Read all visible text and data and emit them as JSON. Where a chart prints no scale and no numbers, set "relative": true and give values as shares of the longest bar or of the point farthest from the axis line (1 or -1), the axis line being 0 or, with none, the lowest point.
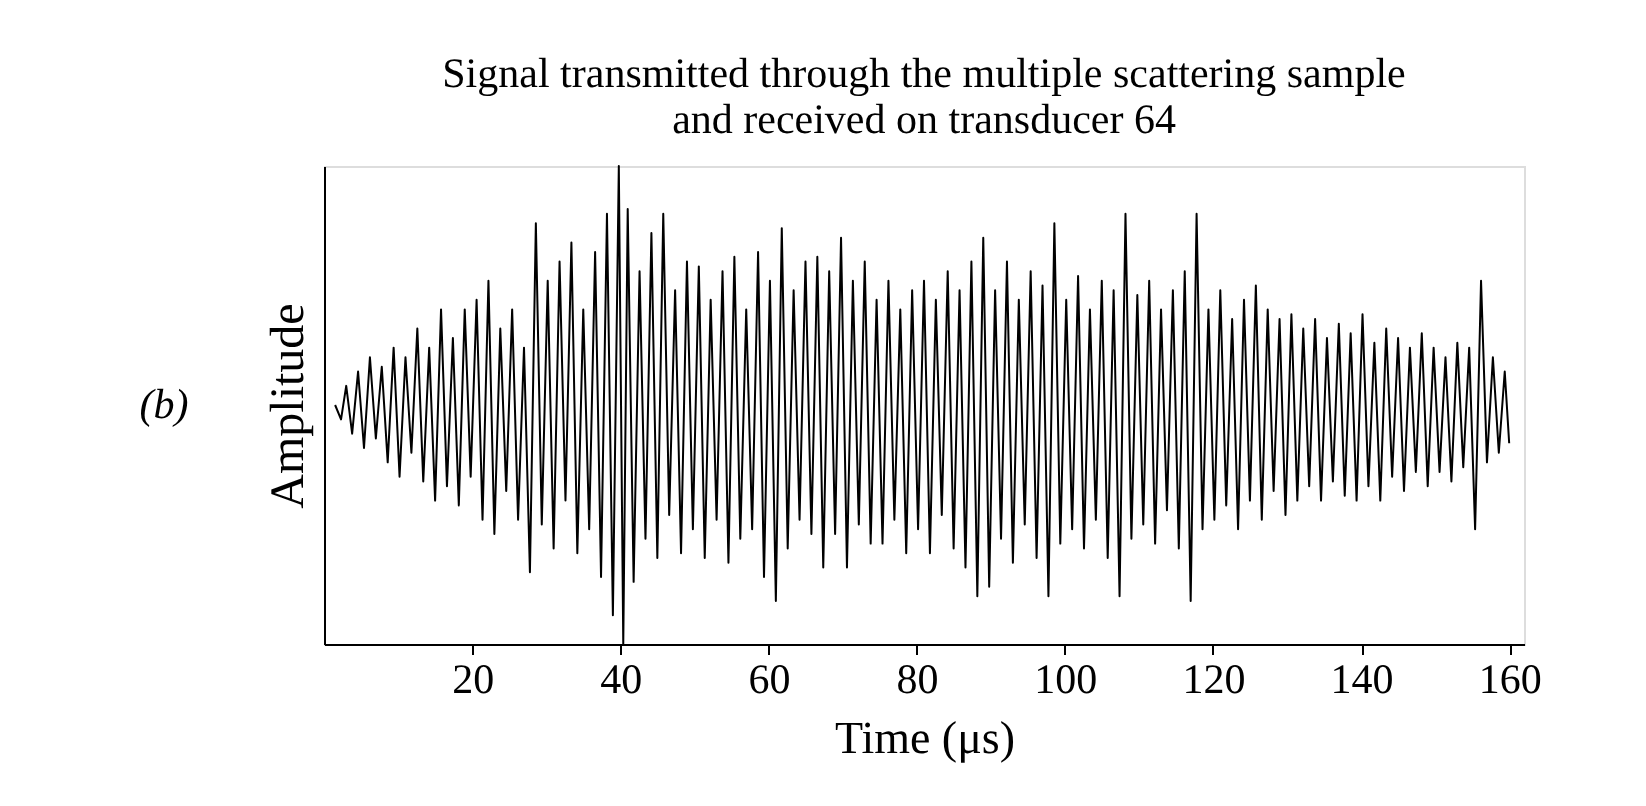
{
  "chart_data": {
    "type": "line",
    "title": "Signal transmitted through the multiple scattering sample\nand received on transducer 64",
    "xlabel": "Time (μs)",
    "ylabel": "Amplitude",
    "annotations": [
      "(b)"
    ],
    "relative": true,
    "color": "#000000",
    "xlim": [
      0,
      162
    ],
    "xticks": [
      20,
      40,
      60,
      80,
      100,
      120,
      140,
      160
    ],
    "x": [
      1.5,
      2.3,
      3.0,
      3.8,
      4.6,
      5.4,
      6.2,
      7.0,
      7.8,
      8.6,
      9.4,
      10.2,
      11.0,
      11.8,
      12.6,
      13.4,
      14.2,
      15.0,
      15.8,
      16.6,
      17.4,
      18.2,
      19.0,
      19.8,
      20.6,
      21.4,
      22.2,
      23.0,
      23.8,
      24.6,
      25.4,
      26.2,
      27.0,
      27.8,
      28.6,
      29.4,
      30.2,
      31.0,
      31.8,
      32.6,
      33.4,
      34.2,
      35.0,
      35.8,
      36.6,
      37.4,
      38.2,
      39.0,
      39.8,
      40.4,
      41.0,
      41.8,
      42.6,
      43.4,
      44.2,
      45.0,
      45.8,
      46.6,
      47.4,
      48.2,
      49.0,
      49.8,
      50.6,
      51.4,
      52.2,
      53.0,
      53.8,
      54.6,
      55.4,
      56.2,
      57.0,
      57.8,
      58.6,
      59.4,
      60.2,
      61.0,
      61.8,
      62.6,
      63.4,
      64.2,
      65.0,
      65.8,
      66.6,
      67.4,
      68.2,
      69.0,
      69.8,
      70.6,
      71.4,
      72.2,
      73.0,
      73.8,
      74.6,
      75.4,
      76.2,
      77.0,
      77.8,
      78.6,
      79.4,
      80.2,
      81.0,
      81.8,
      82.6,
      83.4,
      84.2,
      85.0,
      85.8,
      86.6,
      87.4,
      88.2,
      89.0,
      89.8,
      90.6,
      91.4,
      92.2,
      93.0,
      93.8,
      94.6,
      95.4,
      96.2,
      97.0,
      97.8,
      98.6,
      99.4,
      100.2,
      101.0,
      101.8,
      102.6,
      103.4,
      104.2,
      105.0,
      105.8,
      106.6,
      107.4,
      108.2,
      109.0,
      109.8,
      110.6,
      111.4,
      112.2,
      113.0,
      113.8,
      114.6,
      115.4,
      116.2,
      117.0,
      117.8,
      118.6,
      119.4,
      120.2,
      121.0,
      121.8,
      122.6,
      123.4,
      124.2,
      125.0,
      125.8,
      126.6,
      127.4,
      128.2,
      129.0,
      129.8,
      130.6,
      131.4,
      132.2,
      133.0,
      133.8,
      134.6,
      135.4,
      136.2,
      137.0,
      137.8,
      138.6,
      139.4,
      140.2,
      141.0,
      141.8,
      142.6,
      143.4,
      144.2,
      145.0,
      145.8,
      146.6,
      147.4,
      148.2,
      149.0,
      149.8,
      150.6,
      151.4,
      152.2,
      153.0,
      153.8,
      154.6,
      155.4,
      156.2,
      157.0,
      157.8,
      158.6,
      159.4,
      160.0
    ],
    "values": [
      0.5,
      0.47,
      0.54,
      0.44,
      0.57,
      0.41,
      0.6,
      0.43,
      0.58,
      0.38,
      0.62,
      0.35,
      0.6,
      0.4,
      0.66,
      0.34,
      0.62,
      0.3,
      0.7,
      0.33,
      0.64,
      0.29,
      0.7,
      0.35,
      0.72,
      0.26,
      0.76,
      0.23,
      0.66,
      0.32,
      0.7,
      0.26,
      0.62,
      0.15,
      0.88,
      0.25,
      0.76,
      0.2,
      0.8,
      0.3,
      0.84,
      0.19,
      0.7,
      0.24,
      0.82,
      0.14,
      0.9,
      0.06,
      1.0,
      0.0,
      0.91,
      0.13,
      0.78,
      0.22,
      0.86,
      0.18,
      0.9,
      0.27,
      0.74,
      0.19,
      0.8,
      0.24,
      0.79,
      0.18,
      0.72,
      0.26,
      0.78,
      0.17,
      0.81,
      0.22,
      0.7,
      0.24,
      0.82,
      0.14,
      0.76,
      0.09,
      0.87,
      0.2,
      0.74,
      0.26,
      0.8,
      0.23,
      0.81,
      0.16,
      0.78,
      0.23,
      0.85,
      0.16,
      0.76,
      0.25,
      0.8,
      0.21,
      0.72,
      0.21,
      0.76,
      0.26,
      0.7,
      0.19,
      0.74,
      0.24,
      0.76,
      0.19,
      0.72,
      0.27,
      0.78,
      0.2,
      0.74,
      0.16,
      0.8,
      0.1,
      0.85,
      0.12,
      0.74,
      0.22,
      0.8,
      0.17,
      0.72,
      0.25,
      0.78,
      0.18,
      0.75,
      0.1,
      0.88,
      0.21,
      0.72,
      0.24,
      0.77,
      0.2,
      0.7,
      0.26,
      0.76,
      0.18,
      0.74,
      0.1,
      0.9,
      0.22,
      0.73,
      0.25,
      0.76,
      0.21,
      0.7,
      0.28,
      0.74,
      0.2,
      0.78,
      0.09,
      0.9,
      0.24,
      0.7,
      0.26,
      0.74,
      0.29,
      0.68,
      0.24,
      0.72,
      0.3,
      0.75,
      0.26,
      0.7,
      0.32,
      0.68,
      0.27,
      0.69,
      0.3,
      0.66,
      0.33,
      0.68,
      0.3,
      0.64,
      0.34,
      0.67,
      0.31,
      0.65,
      0.3,
      0.69,
      0.33,
      0.63,
      0.3,
      0.66,
      0.35,
      0.64,
      0.32,
      0.62,
      0.36,
      0.65,
      0.33,
      0.62,
      0.36,
      0.6,
      0.34,
      0.63,
      0.37,
      0.62,
      0.24,
      0.76,
      0.38,
      0.6,
      0.4,
      0.57,
      0.42
    ]
  }
}
